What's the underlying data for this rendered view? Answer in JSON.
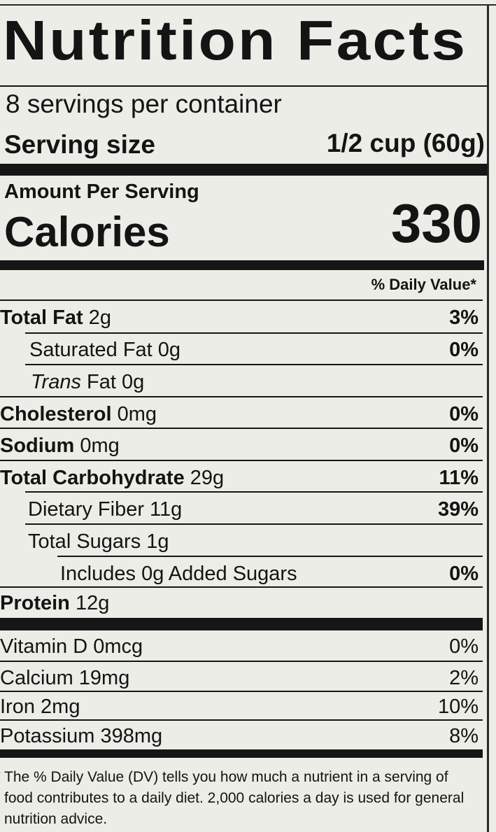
{
  "title": "Nutrition Facts",
  "servings_per_container": "8 servings per container",
  "serving_size": {
    "label": "Serving size",
    "value": "1/2 cup (60g)"
  },
  "amount_per_serving": "Amount Per Serving",
  "calories": {
    "label": "Calories",
    "value": "330"
  },
  "daily_value_header": "% Daily Value*",
  "nutrients": [
    {
      "bold": "Total Fat",
      "rest": " 2g",
      "dv": "3%"
    },
    {
      "rest": "Saturated Fat 0g",
      "dv": "0%"
    },
    {
      "italic": "Trans",
      "rest": " Fat 0g",
      "dv": ""
    },
    {
      "bold": "Cholesterol",
      "rest": " 0mg",
      "dv": "0%"
    },
    {
      "bold": "Sodium",
      "rest": " 0mg",
      "dv": "0%"
    },
    {
      "bold": "Total Carbohydrate",
      "rest": " 29g",
      "dv": "11%"
    },
    {
      "rest": "Dietary Fiber 11g",
      "dv": "39%"
    },
    {
      "rest": "Total Sugars 1g",
      "dv": ""
    },
    {
      "rest": "Includes 0g Added Sugars",
      "dv": "0%"
    },
    {
      "bold": "Protein",
      "rest": " 12g",
      "dv": ""
    }
  ],
  "vitamins": [
    {
      "label": "Vitamin D 0mcg",
      "dv": "0%"
    },
    {
      "label": "Calcium 19mg",
      "dv": "2%"
    },
    {
      "label": "Iron 2mg",
      "dv": "10%"
    },
    {
      "label": "Potassium 398mg",
      "dv": "8%"
    }
  ],
  "footnote": {
    "marker": "*",
    "text": "The % Daily Value (DV) tells you how much a nutrient in a serving of food contributes to a daily diet. 2,000 calories a day is used for general nutrition advice."
  }
}
